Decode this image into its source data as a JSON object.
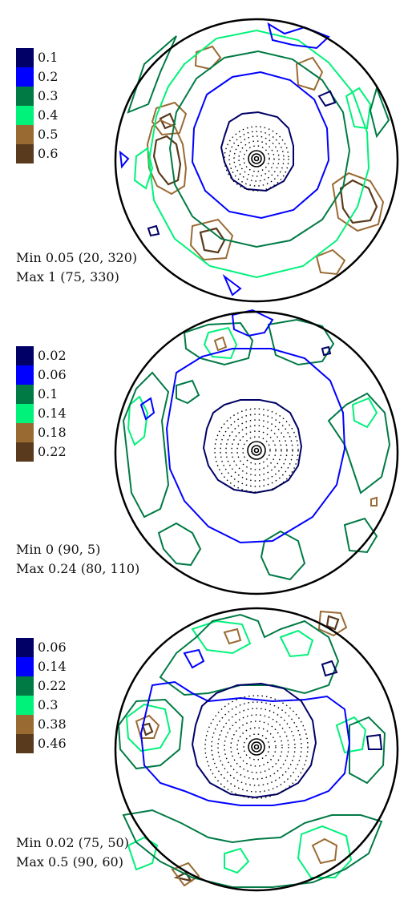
{
  "chart_data": [
    {
      "type": "contour",
      "legend": [
        {
          "value": "0.1",
          "color": "#000066"
        },
        {
          "value": "0.2",
          "color": "#0000ff"
        },
        {
          "value": "0.3",
          "color": "#007a45"
        },
        {
          "value": "0.4",
          "color": "#00f27a"
        },
        {
          "value": "0.5",
          "color": "#9a6a33"
        },
        {
          "value": "0.6",
          "color": "#5a3a1c"
        }
      ],
      "min_label": "Min 0.05 (20, 320)",
      "max_label": "Max 1 (75, 330)"
    },
    {
      "type": "contour",
      "legend": [
        {
          "value": "0.02",
          "color": "#000066"
        },
        {
          "value": "0.06",
          "color": "#0000ff"
        },
        {
          "value": "0.1",
          "color": "#007a45"
        },
        {
          "value": "0.14",
          "color": "#00f27a"
        },
        {
          "value": "0.18",
          "color": "#9a6a33"
        },
        {
          "value": "0.22",
          "color": "#5a3a1c"
        }
      ],
      "min_label": "Min 0 (90, 5)",
      "max_label": "Max 0.24 (80, 110)"
    },
    {
      "type": "contour",
      "legend": [
        {
          "value": "0.06",
          "color": "#000066"
        },
        {
          "value": "0.14",
          "color": "#0000ff"
        },
        {
          "value": "0.22",
          "color": "#007a45"
        },
        {
          "value": "0.3",
          "color": "#00f27a"
        },
        {
          "value": "0.38",
          "color": "#9a6a33"
        },
        {
          "value": "0.46",
          "color": "#5a3a1c"
        }
      ],
      "min_label": "Min 0.02 (75, 50)",
      "max_label": "Max 0.5 (90, 60)"
    }
  ]
}
